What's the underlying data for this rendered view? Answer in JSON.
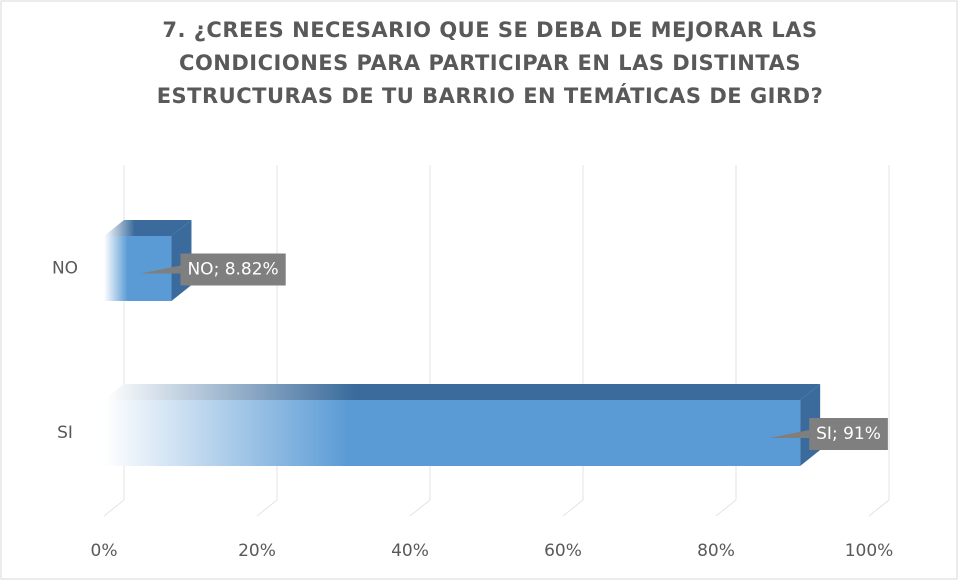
{
  "chart_data": {
    "type": "bar3d-horizontal",
    "title": [
      "7. ¿CREES NECESARIO QUE SE DEBA DE MEJORAR LAS",
      "CONDICIONES PARA PARTICIPAR EN LAS DISTINTAS",
      "ESTRUCTURAS DE TU BARRIO EN TEMÁTICAS DE GIRD?"
    ],
    "categories": [
      "NO",
      "SI"
    ],
    "values": [
      8.82,
      91
    ],
    "value_labels": [
      "NO; 8.82%",
      "SI; 91%"
    ],
    "color": "#5b9bd5",
    "xlim": [
      0,
      100
    ],
    "xticks": [
      {
        "value": 0,
        "label": "0%"
      },
      {
        "value": 20,
        "label": "20%"
      },
      {
        "value": 40,
        "label": "40%"
      },
      {
        "value": 60,
        "label": "60%"
      },
      {
        "value": 80,
        "label": "80%"
      },
      {
        "value": 100,
        "label": "100%"
      }
    ],
    "grid": true
  }
}
